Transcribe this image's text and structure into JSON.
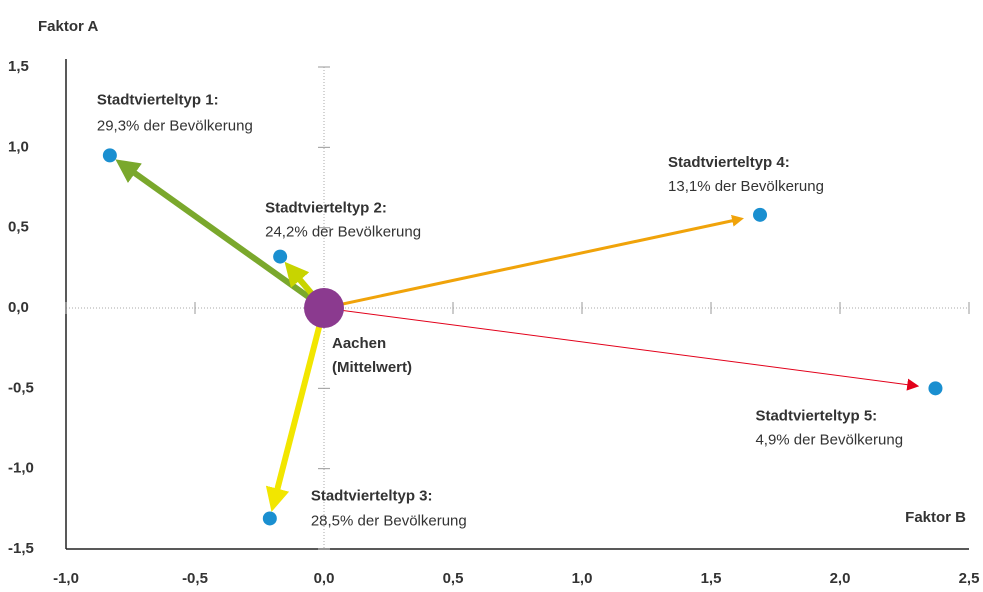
{
  "chart_data": {
    "type": "vector-scatter",
    "y_axis_label": "Faktor A",
    "x_axis_label": "Faktor B",
    "xlim": [
      -1.0,
      2.5
    ],
    "ylim": [
      -1.5,
      1.5
    ],
    "xticks": [
      {
        "value": -1.0,
        "label": "-1,0"
      },
      {
        "value": -0.5,
        "label": "-0,5"
      },
      {
        "value": 0.0,
        "label": "0,0"
      },
      {
        "value": 0.5,
        "label": "0,5"
      },
      {
        "value": 1.0,
        "label": "1,0"
      },
      {
        "value": 1.5,
        "label": "1,5"
      },
      {
        "value": 2.0,
        "label": "2,0"
      },
      {
        "value": 2.5,
        "label": "2,5"
      }
    ],
    "yticks": [
      {
        "value": -1.5,
        "label": "-1,5"
      },
      {
        "value": -1.0,
        "label": "-1,0"
      },
      {
        "value": -0.5,
        "label": "-0,5"
      },
      {
        "value": 0.0,
        "label": "0,0"
      },
      {
        "value": 0.5,
        "label": "0,5"
      },
      {
        "value": 1.0,
        "label": "1,0"
      },
      {
        "value": 1.5,
        "label": "1,5"
      }
    ],
    "origin": {
      "name": "Aachen",
      "note": "(Mittelwert)",
      "x": 0,
      "y": 0,
      "color": "#8b3a8f"
    },
    "point_color": "#1a8fd0",
    "points": [
      {
        "name": "Stadtvierteltyp 1:",
        "share": "29,3% der Bevölkerung",
        "x": -0.83,
        "y": 0.95,
        "color": "#7aa82c",
        "line_width": 6
      },
      {
        "name": "Stadtvierteltyp 2:",
        "share": "24,2% der Bevölkerung",
        "x": -0.17,
        "y": 0.32,
        "color": "#c8d400",
        "line_width": 6
      },
      {
        "name": "Stadtvierteltyp 3:",
        "share": "28,5% der Bevölkerung",
        "x": -0.21,
        "y": -1.31,
        "color": "#f2e600",
        "line_width": 6
      },
      {
        "name": "Stadtvierteltyp 4:",
        "share": "13,1% der Bevölkerung",
        "x": 1.69,
        "y": 0.58,
        "color": "#f0a30a",
        "line_width": 3
      },
      {
        "name": "Stadtvierteltyp 5:",
        "share": "4,9% der Bevölkerung",
        "x": 2.37,
        "y": -0.5,
        "color": "#e2001a",
        "line_width": 1
      }
    ]
  }
}
